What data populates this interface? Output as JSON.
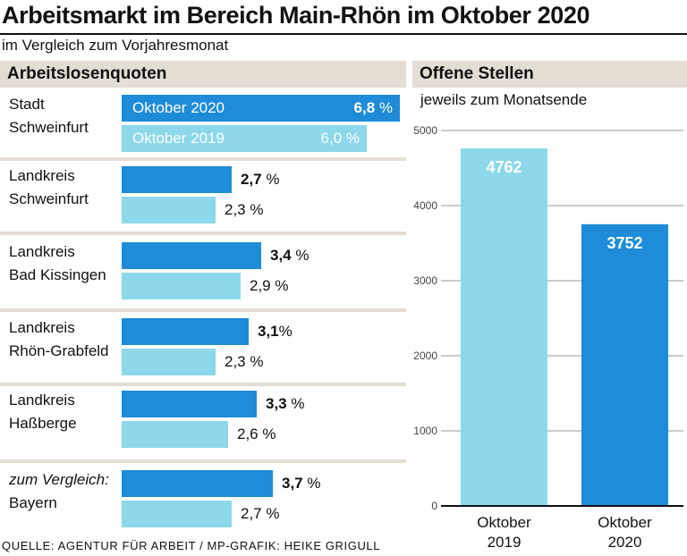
{
  "title": "Arbeitsmarkt im Bereich Main-Rhön im Oktober 2020",
  "subtitle": "im Vergleich zum Vorjahresmonat",
  "left_section": {
    "heading": "Arbeitslosenquoten"
  },
  "right_section": {
    "heading": "Offene Stellen",
    "subheading": "jeweils zum Monatsende"
  },
  "legend": {
    "label_2020": "Oktober 2020",
    "label_2019": "Oktober 2019"
  },
  "source": "QUELLE: AGENTUR FÜR ARBEIT / MP-GRAFIK: HEIKE GRIGULL",
  "colors": {
    "oct2020": "#1e8cd8",
    "oct2019": "#8dd8ea",
    "section_bg": "#e3ddd4"
  },
  "chart_data": [
    {
      "type": "bar",
      "orientation": "horizontal",
      "title": "Arbeitslosenquoten",
      "categories": [
        {
          "line1": "Stadt",
          "line2": "Schweinfurt"
        },
        {
          "line1": "Landkreis",
          "line2": "Schweinfurt"
        },
        {
          "line1": "Landkreis",
          "line2": "Bad Kissingen"
        },
        {
          "line1": "Landkreis",
          "line2": "Rhön-Grabfeld"
        },
        {
          "line1": "Landkreis",
          "line2": "Haßberge"
        },
        {
          "line1": "zum Vergleich:",
          "line2": "Bayern"
        }
      ],
      "series": [
        {
          "name": "Oktober 2020",
          "values": [
            6.8,
            2.7,
            3.4,
            3.1,
            3.3,
            3.7
          ],
          "labels": [
            "6,8",
            "2,7",
            "3,4",
            "3,1",
            "3,3",
            "3,7"
          ],
          "suffixes": [
            " %",
            " %",
            " %",
            "%",
            " %",
            " %"
          ]
        },
        {
          "name": "Oktober 2019",
          "values": [
            6.0,
            2.3,
            2.9,
            2.3,
            2.6,
            2.7
          ],
          "labels": [
            "6,0",
            "2,3",
            "2,9",
            "2,3",
            "2,6",
            "2,7"
          ],
          "suffixes": [
            " %",
            " %",
            " %",
            " %",
            " %",
            " %"
          ]
        }
      ],
      "unit": "%"
    },
    {
      "type": "bar",
      "orientation": "vertical",
      "title": "Offene Stellen",
      "subtitle": "jeweils zum Monatsende",
      "categories": [
        {
          "line1": "Oktober",
          "line2": "2019"
        },
        {
          "line1": "Oktober",
          "line2": "2020"
        }
      ],
      "values": [
        4762,
        3752
      ],
      "value_labels": [
        "4762",
        "3752"
      ],
      "ylim": [
        0,
        5000
      ],
      "yticks": [
        0,
        1000,
        2000,
        3000,
        4000,
        5000
      ],
      "ytick_labels": [
        "0",
        "1000",
        "2000",
        "3000",
        "4000",
        "5000"
      ],
      "grid": true
    }
  ]
}
